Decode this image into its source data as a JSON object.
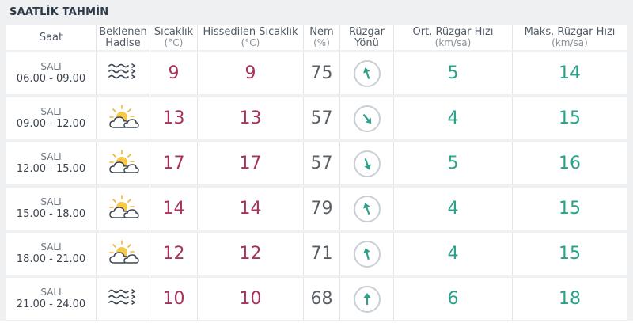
{
  "title": "SAATLİK TAHMİN",
  "headers": {
    "time": {
      "label": "Saat"
    },
    "event": {
      "label": "Beklenen",
      "label2": "Hadise"
    },
    "temp": {
      "label": "Sıcaklık",
      "unit": "(°C)"
    },
    "feels": {
      "label": "Hissedilen Sıcaklık",
      "unit": "(°C)"
    },
    "humidity": {
      "label": "Nem",
      "unit": "(%)"
    },
    "winddir": {
      "label": "Rüzgar",
      "label2": "Yönü"
    },
    "avgwind": {
      "label": "Ort. Rüzgar Hızı",
      "unit": "(km/sa)"
    },
    "maxwind": {
      "label": "Maks. Rüzgar Hızı",
      "unit": "(km/sa)"
    }
  },
  "rows": [
    {
      "day": "SALI",
      "time": "06.00 - 09.00",
      "icon": "fog-icon",
      "temp": "9",
      "feels": "9",
      "humidity": "75",
      "wind_dir_deg": 340,
      "avg": "5",
      "max": "14"
    },
    {
      "day": "SALI",
      "time": "09.00 - 12.00",
      "icon": "partly-cloudy-icon",
      "temp": "13",
      "feels": "13",
      "humidity": "57",
      "wind_dir_deg": 140,
      "avg": "4",
      "max": "15"
    },
    {
      "day": "SALI",
      "time": "12.00 - 15.00",
      "icon": "partly-cloudy-icon",
      "temp": "17",
      "feels": "17",
      "humidity": "57",
      "wind_dir_deg": 160,
      "avg": "5",
      "max": "16"
    },
    {
      "day": "SALI",
      "time": "15.00 - 18.00",
      "icon": "partly-cloudy-icon",
      "temp": "14",
      "feels": "14",
      "humidity": "79",
      "wind_dir_deg": 340,
      "avg": "4",
      "max": "15"
    },
    {
      "day": "SALI",
      "time": "18.00 - 21.00",
      "icon": "partly-cloudy-icon",
      "temp": "12",
      "feels": "12",
      "humidity": "71",
      "wind_dir_deg": 345,
      "avg": "4",
      "max": "15"
    },
    {
      "day": "SALI",
      "time": "21.00 - 24.00",
      "icon": "fog-icon",
      "temp": "10",
      "feels": "10",
      "humidity": "68",
      "wind_dir_deg": 0,
      "avg": "6",
      "max": "18"
    }
  ],
  "colors": {
    "temp": "#a8325e",
    "wind": "#2aa188",
    "arrow": "#2aa188"
  }
}
